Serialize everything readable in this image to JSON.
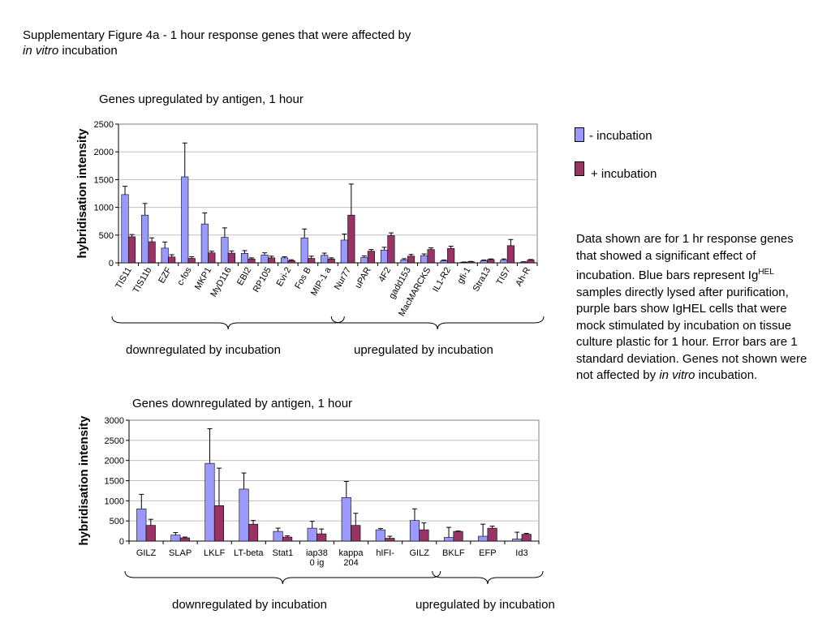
{
  "page": {
    "title_line1": "Supplementary Figure 4a - 1 hour response genes that were affected by",
    "title_line2_italic": "in vitro",
    "title_line2_rest": " incubation"
  },
  "legend": {
    "minus_label": "- incubation",
    "plus_label": "+ incubation",
    "minus_color": "#9999ff",
    "plus_color": "#993366"
  },
  "description": {
    "part1": "Data shown are for 1 hr response genes that showed a significant effect of incubation. Blue bars represent Ig",
    "sup": "HEL",
    "part2": " samples directly lysed after purification, purple bars show IgHEL cells that were mock stimulated by incubation on tissue culture plastic for 1 hour. Error bars are 1 standard deviation. Genes not shown were not affected by ",
    "italic": "in vitro",
    "part3": " incubation."
  },
  "chart_data": [
    {
      "type": "bar",
      "title": "Genes upregulated by antigen, 1 hour",
      "ylabel": "hybridisation intensity",
      "ylim": [
        0,
        2500
      ],
      "yticks": [
        0,
        500,
        1000,
        1500,
        2000,
        2500
      ],
      "categories": [
        "TIS11",
        "TIS11b",
        "EZF",
        "c-fos",
        "MKP1",
        "MyD116",
        "EBI2",
        "RP105",
        "Evi-2",
        "Fos B",
        "MIP-1 a",
        "Nur77",
        "uPAR",
        "4F2",
        "gadd153",
        "MacMARCKS",
        "IL1-R2",
        "gfi-1",
        "Stra13",
        "TIS7",
        "Ah-R"
      ],
      "series": [
        {
          "name": "- incubation",
          "values": [
            1230,
            860,
            265,
            1550,
            700,
            460,
            170,
            140,
            90,
            450,
            135,
            410,
            95,
            230,
            55,
            130,
            40,
            10,
            40,
            50,
            15
          ],
          "errors": [
            150,
            210,
            110,
            610,
            200,
            170,
            50,
            40,
            20,
            160,
            40,
            110,
            30,
            50,
            20,
            30,
            10,
            5,
            10,
            20,
            5
          ]
        },
        {
          "name": "+ incubation",
          "values": [
            470,
            380,
            105,
            80,
            180,
            175,
            70,
            90,
            40,
            80,
            70,
            860,
            210,
            490,
            120,
            240,
            260,
            20,
            60,
            310,
            50
          ],
          "errors": [
            40,
            70,
            40,
            30,
            30,
            40,
            20,
            30,
            15,
            40,
            20,
            560,
            30,
            50,
            30,
            30,
            40,
            5,
            10,
            110,
            10
          ]
        }
      ],
      "groups": [
        {
          "label": "downregulated by incubation",
          "from": 0,
          "to": 10
        },
        {
          "label": "upregulated by incubation",
          "from": 11,
          "to": 20
        }
      ],
      "grid": true
    },
    {
      "type": "bar",
      "title": "Genes downregulated by antigen, 1 hour",
      "ylabel": "hybridisation intensity",
      "ylim": [
        0,
        3000
      ],
      "yticks": [
        0,
        500,
        1000,
        1500,
        2000,
        2500,
        3000
      ],
      "categories": [
        "GILZ",
        "SLAP",
        "LKLF",
        "LT-beta",
        "Stat1",
        "iap38\n0 ig",
        "kappa\n204",
        "hIFI-",
        "GILZ",
        "BKLF",
        "EFP",
        "Id3"
      ],
      "series": [
        {
          "name": "- incubation",
          "values": [
            800,
            150,
            1930,
            1290,
            240,
            320,
            1080,
            280,
            510,
            90,
            120,
            50
          ],
          "errors": [
            360,
            60,
            860,
            400,
            80,
            170,
            400,
            30,
            290,
            250,
            300,
            170
          ]
        },
        {
          "name": "+ incubation",
          "values": [
            390,
            80,
            880,
            420,
            100,
            180,
            390,
            70,
            280,
            240,
            320,
            170
          ],
          "errors": [
            150,
            20,
            930,
            90,
            30,
            120,
            300,
            50,
            170,
            10,
            50,
            20
          ]
        }
      ],
      "groups": [
        {
          "label": "downregulated by incubation",
          "from": 0,
          "to": 8
        },
        {
          "label": "upregulated by incubation",
          "from": 9,
          "to": 11
        }
      ],
      "grid": true
    }
  ]
}
